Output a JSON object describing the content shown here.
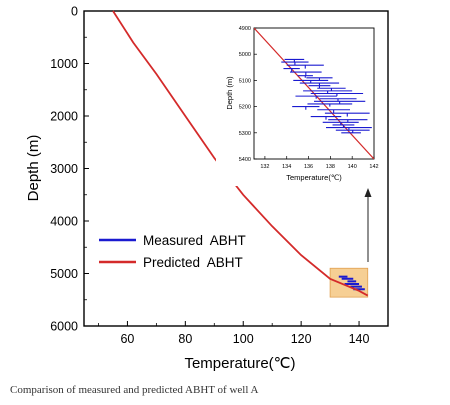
{
  "caption": "Comparison of measured and predicted ABHT of well A",
  "colors": {
    "measured": "#1a1ad0",
    "predicted": "#d42a2a",
    "highlight_fill": "#f6cf94",
    "highlight_stroke": "#e0a050",
    "arrow": "#222222"
  },
  "chart_data": [
    {
      "type": "line",
      "xlabel": "Temperature(℃)",
      "ylabel": "Depth (m)",
      "xlim": [
        45,
        150
      ],
      "ylim": [
        6000,
        0
      ],
      "y_inverted": true,
      "x_ticks": [
        "60",
        "80",
        "100",
        "120",
        "140"
      ],
      "y_ticks": [
        "0",
        "1000",
        "2000",
        "3000",
        "4000",
        "5000",
        "6000"
      ],
      "legend": {
        "placement": "lower-left",
        "entries": [
          "Measured  ABHT",
          "Predicted  ABHT"
        ]
      },
      "series": [
        {
          "name": "Predicted  ABHT",
          "x": [
            55,
            62,
            70,
            80,
            90,
            100,
            110,
            120,
            130,
            140,
            143
          ],
          "y": [
            0,
            600,
            1200,
            2000,
            2800,
            3500,
            4100,
            4650,
            5100,
            5330,
            5420
          ]
        },
        {
          "name": "Measured  ABHT",
          "y": [
            5060,
            5100,
            5150,
            5200,
            5250,
            5300
          ],
          "x_start": [
            133,
            134,
            136,
            135,
            137,
            138
          ],
          "x_end": [
            136,
            138,
            139,
            140,
            141,
            142
          ]
        }
      ],
      "highlight_box": {
        "xlim": [
          130,
          143
        ],
        "ylim": [
          4900,
          5450
        ]
      }
    },
    {
      "type": "line",
      "title": "",
      "xlabel": "Temperature(℃)",
      "ylabel": "Depth (m)",
      "xlim": [
        131,
        142
      ],
      "ylim": [
        5400,
        4900
      ],
      "y_inverted": true,
      "x_ticks": [
        "132",
        "134",
        "136",
        "138",
        "140",
        "142"
      ],
      "y_ticks": [
        "4900",
        "5000",
        "5100",
        "5200",
        "5300",
        "5400"
      ],
      "series": [
        {
          "name": "Measured  ABHT",
          "y": [
            5020,
            5030,
            5042,
            5055,
            5068,
            5082,
            5090,
            5100,
            5110,
            5120,
            5130,
            5140,
            5150,
            5160,
            5170,
            5180,
            5190,
            5200,
            5212,
            5225,
            5238,
            5250,
            5260,
            5270,
            5280,
            5290,
            5300
          ],
          "x_start": [
            133.8,
            133.5,
            134.0,
            133.7,
            134.3,
            135.0,
            135.8,
            134.6,
            135.2,
            136.0,
            136.8,
            135.5,
            136.2,
            134.8,
            137.0,
            136.5,
            135.9,
            134.5,
            136.8,
            137.5,
            136.2,
            137.8,
            137.3,
            138.2,
            137.6,
            138.5,
            139.0
          ],
          "x_end": [
            135.6,
            136.0,
            137.4,
            135.2,
            137.2,
            136.4,
            138.2,
            137.8,
            138.8,
            138.0,
            139.4,
            140.0,
            141.0,
            138.6,
            140.4,
            141.2,
            140.0,
            137.0,
            139.8,
            141.6,
            139.0,
            141.4,
            140.6,
            140.2,
            141.8,
            141.6,
            140.8
          ]
        },
        {
          "name": "Predicted  ABHT",
          "x": [
            131.0,
            142.0
          ],
          "y": [
            4900,
            5400
          ]
        }
      ]
    }
  ]
}
